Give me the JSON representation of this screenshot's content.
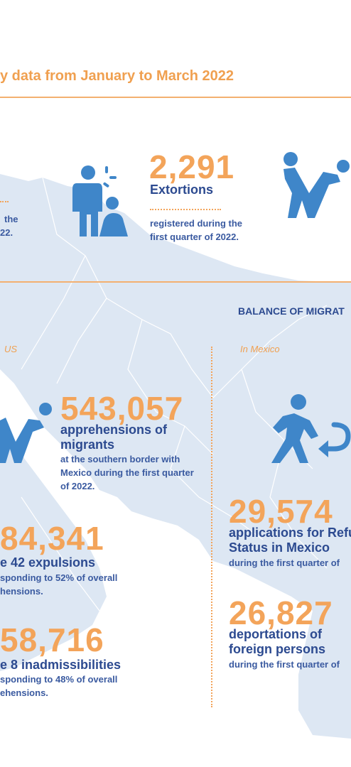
{
  "header": {
    "title": "y data from January to March 2022"
  },
  "left_fragment": {
    "line1": "the",
    "line2": "22."
  },
  "extortions": {
    "value": "2,291",
    "label": "Extortions",
    "desc_line1": "registered during the",
    "desc_line2": "first quarter of 2022."
  },
  "balance": {
    "title": "BALANCE OF MIGRAT",
    "us_label": "US",
    "mexico_label": "In Mexico"
  },
  "apprehensions": {
    "value": "543,057",
    "label_line1": "apprehensions of",
    "label_line2": "migrants",
    "desc_line1": "at the southern border with",
    "desc_line2": "Mexico during the first quarter",
    "desc_line3": "of 2022."
  },
  "expulsions": {
    "value": "84,341",
    "label": "e 42 expulsions",
    "desc_line1": "sponding to 52% of overall",
    "desc_line2": "hensions."
  },
  "inadmissibilities": {
    "value": "58,716",
    "label": "e 8 inadmissibilities",
    "desc_line1": "sponding to 48% of overall",
    "desc_line2": "ehensions."
  },
  "refugee": {
    "value": "29,574",
    "label_line1": "applications for Refu",
    "label_line2": "Status in Mexico",
    "desc": "during the first quarter of"
  },
  "deportations": {
    "value": "26,827",
    "label_line1": "deportations of",
    "label_line2": "foreign persons",
    "desc": "during the first quarter of"
  },
  "icons": [
    "aggression-icon",
    "apprehension-icon",
    "apprehension-icon-large",
    "return-icon"
  ],
  "colors": {
    "orange": "#f3a45a",
    "navy": "#2c4a90",
    "icon_blue": "#3f86c9",
    "map": "#dbe6f3"
  }
}
